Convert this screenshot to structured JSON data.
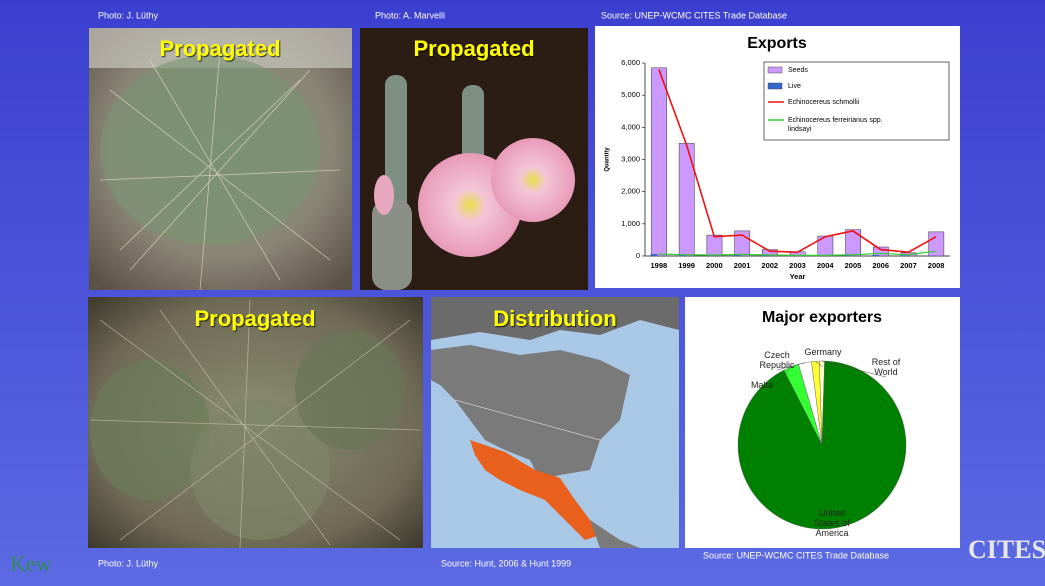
{
  "captions": {
    "top_left": "Photo: J. Lüthy",
    "top_middle": "Photo: A. Marvelli",
    "top_right": "Source: UNEP-WCMC CITES Trade Database",
    "bottom_left": "Photo: J. Lüthy",
    "bottom_middle": "Source: Hunt, 2006 & Hunt 1999",
    "bottom_right": "Source: UNEP-WCMC CITES Trade Database"
  },
  "photo_labels": [
    "Propagated",
    "Propagated",
    "Propagated",
    "Distribution"
  ],
  "logos": {
    "left": "Kew",
    "right": "CITES"
  },
  "chart_data": [
    {
      "type": "bar-line",
      "title": "Exports",
      "x_label": "Year",
      "y_label": "Quantity",
      "categories": [
        "1998",
        "1999",
        "2000",
        "2001",
        "2002",
        "2003",
        "2004",
        "2005",
        "2006",
        "2007",
        "2008"
      ],
      "series": [
        {
          "name": "Seeds",
          "kind": "bar",
          "color": "#cc99ff",
          "values": [
            5850,
            3500,
            650,
            780,
            200,
            130,
            620,
            820,
            280,
            100,
            750
          ]
        },
        {
          "name": "Live",
          "kind": "bar",
          "color": "#3366cc",
          "values": [
            60,
            30,
            10,
            40,
            20,
            10,
            10,
            20,
            30,
            20,
            10
          ]
        },
        {
          "name": "Echinocereus schmollii",
          "kind": "line",
          "color": "#ee1111",
          "values": [
            5800,
            3450,
            600,
            650,
            150,
            120,
            600,
            780,
            200,
            120,
            600
          ]
        },
        {
          "name": "Echinocereus ferreirianus spp. lindsayi",
          "kind": "line",
          "color": "#33cc33",
          "values": [
            60,
            40,
            30,
            50,
            30,
            20,
            20,
            40,
            80,
            40,
            150
          ]
        }
      ],
      "ylim": [
        0,
        6000
      ],
      "yticks": [
        0,
        {
          "value": 1000,
          "label": "1,000"
        },
        {
          "value": 2000,
          "label": "2,000"
        },
        {
          "value": 3000,
          "label": "3,000"
        },
        {
          "value": 4000,
          "label": "4,000"
        },
        {
          "value": 5000,
          "label": "5,000"
        },
        {
          "value": 6000,
          "label": "6,000"
        }
      ]
    },
    {
      "type": "pie",
      "title": "Major exporters",
      "categories": [
        "Malta",
        "Czech Republic",
        "Germany",
        "Rest of World",
        "United States of America"
      ],
      "values": [
        3,
        2.5,
        1.5,
        1,
        92
      ],
      "colors": [
        "#33ff33",
        "#ffffff",
        "#ffff33",
        "#ffffcc",
        "#008000"
      ]
    }
  ]
}
